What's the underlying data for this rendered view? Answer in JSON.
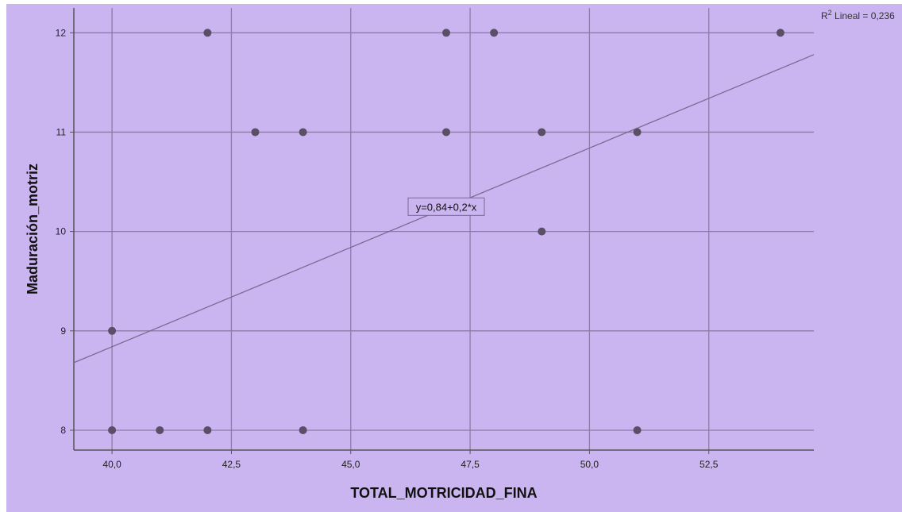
{
  "chart_data": {
    "type": "scatter",
    "title": "",
    "xlabel": "TOTAL_MOTRICIDAD_FINA",
    "ylabel": "Maduración_motriz",
    "xlim": [
      39.2,
      54.7
    ],
    "ylim": [
      7.8,
      12.25
    ],
    "xticks": [
      40,
      42.5,
      45,
      47.5,
      50,
      52.5
    ],
    "xtick_labels": [
      "40,0",
      "42,5",
      "45,0",
      "47,5",
      "50,0",
      "52,5"
    ],
    "yticks": [
      8,
      9,
      10,
      11,
      12
    ],
    "ytick_labels": [
      "8",
      "9",
      "10",
      "11",
      "12"
    ],
    "xgrid_values": [
      40,
      42.5,
      45,
      47.5,
      50,
      52.5
    ],
    "ygrid_values": [
      8,
      9,
      10,
      11,
      12
    ],
    "grid": true,
    "points": [
      {
        "x": 40,
        "y": 9
      },
      {
        "x": 40,
        "y": 8
      },
      {
        "x": 41,
        "y": 8
      },
      {
        "x": 42,
        "y": 12
      },
      {
        "x": 42,
        "y": 8
      },
      {
        "x": 43,
        "y": 11
      },
      {
        "x": 44,
        "y": 11
      },
      {
        "x": 44,
        "y": 8
      },
      {
        "x": 47,
        "y": 12
      },
      {
        "x": 47,
        "y": 11
      },
      {
        "x": 48,
        "y": 12
      },
      {
        "x": 49,
        "y": 11
      },
      {
        "x": 49,
        "y": 10
      },
      {
        "x": 51,
        "y": 11
      },
      {
        "x": 51,
        "y": 8
      },
      {
        "x": 54,
        "y": 12
      }
    ],
    "fit_line": {
      "intercept": 0.84,
      "slope": 0.2,
      "equation_label": "y=0,84+0,2*x"
    },
    "r2_label": {
      "prefix": "R",
      "superscript": "2",
      "text": " Lineal = 0,236"
    },
    "colors": {
      "background": "#cbb5f0",
      "grid": "#8f7aa8",
      "point": "#5a4f66",
      "line": "#7a6a92",
      "axis": "#555555"
    }
  }
}
